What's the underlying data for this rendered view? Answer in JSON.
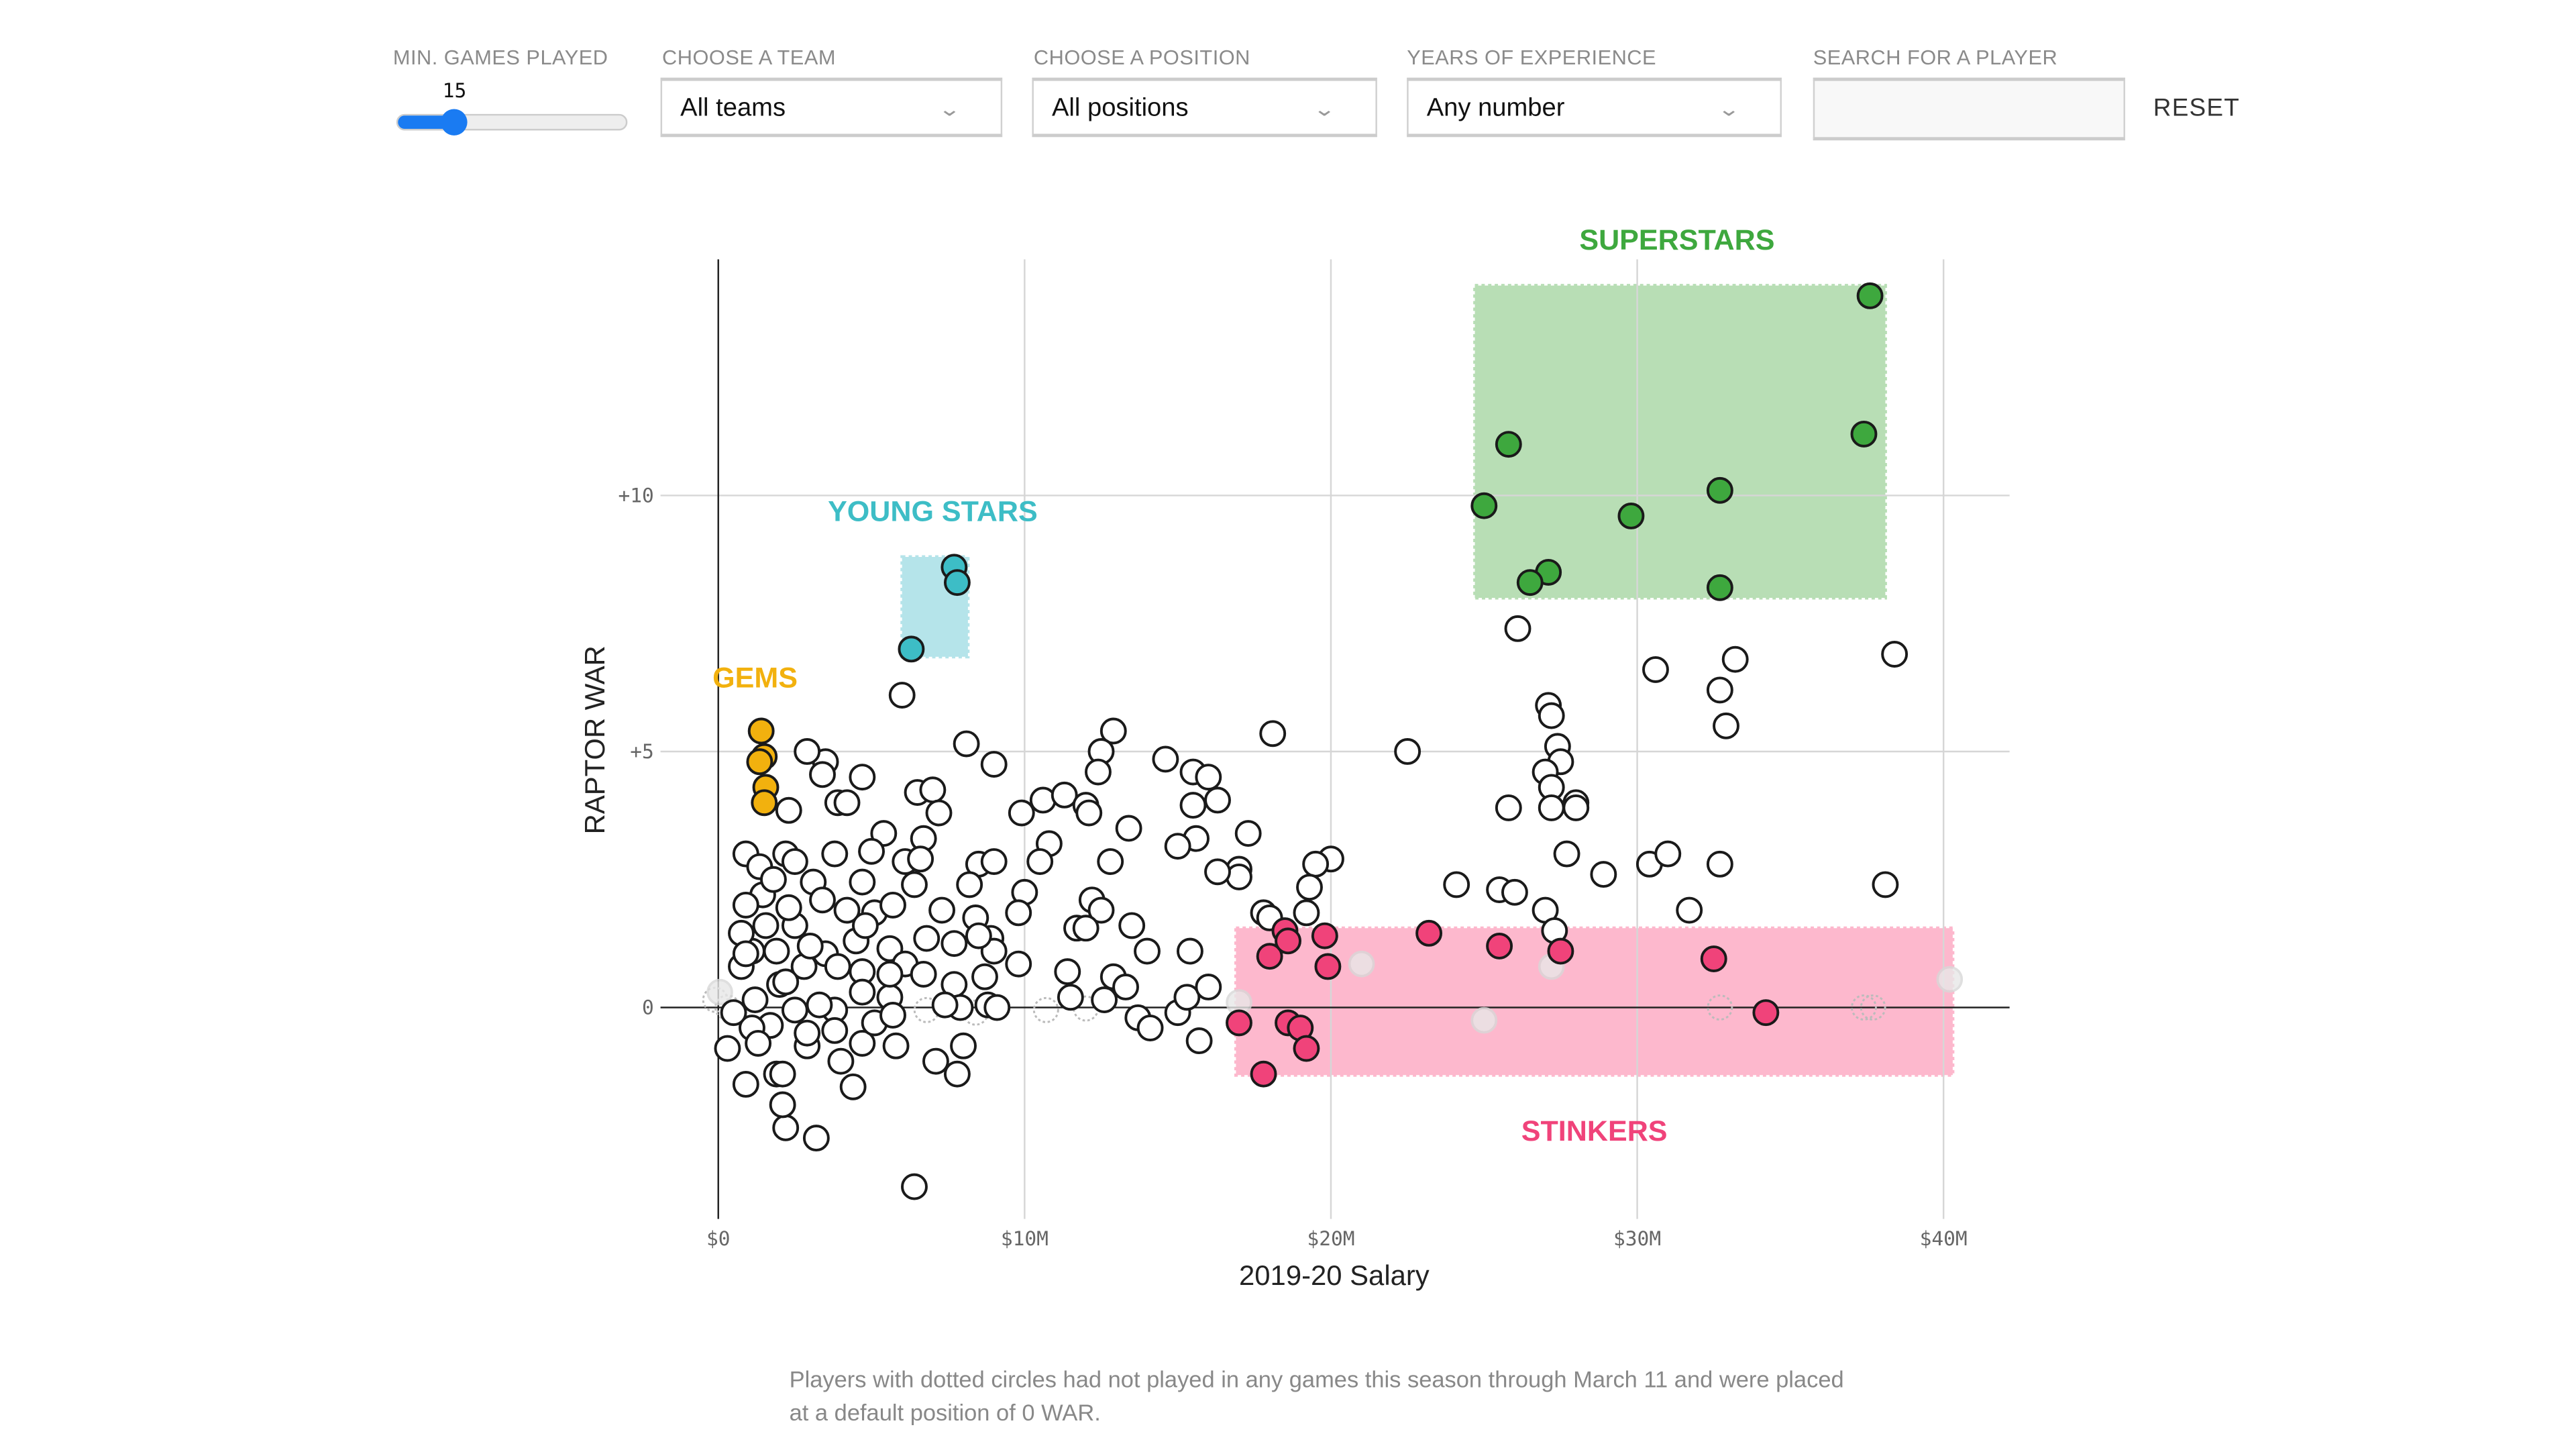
{
  "controls": {
    "min_games": {
      "label": "MIN. GAMES PLAYED",
      "value": "15",
      "fraction": 0.25
    },
    "team": {
      "label": "CHOOSE A TEAM",
      "value": "All teams"
    },
    "position": {
      "label": "CHOOSE A POSITION",
      "value": "All positions"
    },
    "experience": {
      "label": "YEARS OF EXPERIENCE",
      "value": "Any number"
    },
    "search": {
      "label": "SEARCH FOR A PLAYER",
      "value": "",
      "placeholder": ""
    },
    "reset_label": "RESET"
  },
  "colors": {
    "gems": "#f2b10e",
    "young_stars": "#3dbdc6",
    "superstars": "#3ea83e",
    "stinkers": "#f0437a",
    "gems_bg": "#fbe3a6",
    "young_bg": "#b5e4ea",
    "super_bg": "#b8deb5",
    "stinkers_bg": "#fdb8cd"
  },
  "chart_data": {
    "type": "scatter",
    "xlabel": "2019-20 Salary",
    "ylabel": "RAPTOR WAR",
    "xlim": [
      0,
      42
    ],
    "ylim": [
      -4.1,
      14.8
    ],
    "x_ticks": [
      {
        "v": 0,
        "label": "$0"
      },
      {
        "v": 10,
        "label": "$10M"
      },
      {
        "v": 20,
        "label": "$20M"
      },
      {
        "v": 30,
        "label": "$30M"
      },
      {
        "v": 40,
        "label": "$40M"
      }
    ],
    "y_ticks": [
      {
        "v": 10,
        "label": "+10"
      },
      {
        "v": 5,
        "label": "+5"
      },
      {
        "v": 0,
        "label": "0"
      }
    ],
    "grid": true,
    "groups": [
      {
        "key": "superstars",
        "label": "SUPERSTARS",
        "region": {
          "x": [
            24.7,
            38.1
          ],
          "y": [
            8.0,
            14.1
          ]
        },
        "label_at": [
          31.3,
          14.8
        ],
        "points": [
          [
            37.6,
            13.9
          ],
          [
            37.4,
            11.2
          ],
          [
            25.8,
            11.0
          ],
          [
            25.0,
            9.8
          ],
          [
            32.7,
            10.1
          ],
          [
            29.8,
            9.6
          ],
          [
            27.1,
            8.5
          ],
          [
            26.5,
            8.3
          ],
          [
            32.7,
            8.2
          ]
        ]
      },
      {
        "key": "young_stars",
        "label": "YOUNG STARS",
        "region": {
          "x": [
            6.0,
            8.15
          ],
          "y": [
            6.85,
            8.8
          ]
        },
        "label_at": [
          7.0,
          9.5
        ],
        "points": [
          [
            7.7,
            8.6
          ],
          [
            7.8,
            8.3
          ],
          [
            6.3,
            7.0
          ]
        ]
      },
      {
        "key": "gems",
        "label": "GEMS",
        "region": null,
        "label_at": [
          1.2,
          6.25
        ],
        "points": [
          [
            1.4,
            5.4
          ],
          [
            1.5,
            4.9
          ],
          [
            1.35,
            4.8
          ],
          [
            1.55,
            4.3
          ],
          [
            1.5,
            4.0
          ]
        ]
      },
      {
        "key": "stinkers",
        "label": "STINKERS",
        "region": {
          "x": [
            16.9,
            40.3
          ],
          "y": [
            -1.32,
            1.55
          ]
        },
        "label_at": [
          28.6,
          -2.6
        ],
        "points": [
          [
            17.0,
            -0.3
          ],
          [
            17.8,
            -1.3
          ],
          [
            18.0,
            1.0
          ],
          [
            18.5,
            1.5
          ],
          [
            18.6,
            1.3
          ],
          [
            18.6,
            -0.3
          ],
          [
            19.0,
            -0.4
          ],
          [
            19.2,
            -0.8
          ],
          [
            19.8,
            1.4
          ],
          [
            19.9,
            0.8
          ],
          [
            23.2,
            1.45
          ],
          [
            25.5,
            1.2
          ],
          [
            27.5,
            1.1
          ],
          [
            32.5,
            0.95
          ],
          [
            34.2,
            -0.1
          ]
        ]
      }
    ],
    "other_points": [
      [
        26.1,
        7.4
      ],
      [
        30.6,
        6.6
      ],
      [
        33.2,
        6.8
      ],
      [
        38.4,
        6.9
      ],
      [
        32.7,
        6.2
      ],
      [
        32.9,
        5.5
      ],
      [
        27.1,
        5.9
      ],
      [
        27.2,
        5.7
      ],
      [
        27.4,
        5.1
      ],
      [
        27.5,
        4.8
      ],
      [
        27.0,
        4.6
      ],
      [
        27.2,
        4.3
      ],
      [
        27.2,
        3.9
      ],
      [
        28.0,
        4.0
      ],
      [
        28.0,
        3.9
      ],
      [
        25.8,
        3.9
      ],
      [
        22.5,
        5.0
      ],
      [
        18.1,
        5.35
      ],
      [
        27.7,
        3.0
      ],
      [
        28.9,
        2.6
      ],
      [
        30.4,
        2.8
      ],
      [
        31.0,
        3.0
      ],
      [
        32.7,
        2.8
      ],
      [
        24.1,
        2.4
      ],
      [
        25.5,
        2.3
      ],
      [
        26.0,
        2.25
      ],
      [
        27.0,
        1.9
      ],
      [
        31.7,
        1.9
      ],
      [
        38.1,
        2.4
      ],
      [
        27.3,
        1.5
      ],
      [
        17.3,
        3.4
      ],
      [
        20.0,
        2.9
      ],
      [
        19.5,
        2.8
      ],
      [
        19.3,
        2.35
      ],
      [
        19.2,
        1.85
      ],
      [
        17.8,
        1.85
      ],
      [
        18.0,
        1.75
      ],
      [
        17.0,
        2.7
      ],
      [
        17.0,
        2.55
      ],
      [
        16.3,
        2.65
      ],
      [
        8.1,
        5.15
      ],
      [
        9.0,
        4.75
      ],
      [
        6.0,
        6.1
      ],
      [
        12.9,
        5.4
      ],
      [
        12.5,
        5.0
      ],
      [
        12.4,
        4.6
      ],
      [
        14.6,
        4.85
      ],
      [
        15.5,
        4.6
      ],
      [
        16.0,
        4.5
      ],
      [
        16.3,
        4.05
      ],
      [
        15.5,
        3.95
      ],
      [
        10.6,
        4.05
      ],
      [
        9.9,
        3.8
      ],
      [
        11.3,
        4.15
      ],
      [
        12.0,
        3.95
      ],
      [
        12.1,
        3.8
      ],
      [
        13.4,
        3.5
      ],
      [
        10.8,
        3.2
      ],
      [
        12.8,
        2.85
      ],
      [
        15.6,
        3.3
      ],
      [
        15.0,
        3.15
      ],
      [
        12.2,
        2.1
      ],
      [
        12.5,
        1.9
      ],
      [
        13.5,
        1.6
      ],
      [
        14.0,
        1.1
      ],
      [
        15.4,
        1.1
      ],
      [
        11.7,
        1.55
      ],
      [
        12.0,
        1.55
      ],
      [
        11.4,
        0.7
      ],
      [
        11.5,
        0.2
      ],
      [
        12.6,
        0.15
      ],
      [
        12.9,
        0.6
      ],
      [
        13.3,
        0.4
      ],
      [
        13.7,
        -0.2
      ],
      [
        14.1,
        -0.4
      ],
      [
        15.0,
        -0.1
      ],
      [
        15.3,
        0.2
      ],
      [
        15.7,
        -0.65
      ],
      [
        16.0,
        0.4
      ],
      [
        10.5,
        2.85
      ],
      [
        10.0,
        2.25
      ],
      [
        9.8,
        1.85
      ],
      [
        9.8,
        0.85
      ],
      [
        8.8,
        0.05
      ],
      [
        9.1,
        0.0
      ],
      [
        8.5,
        2.8
      ],
      [
        9.0,
        2.85
      ],
      [
        8.9,
        1.35
      ],
      [
        9.0,
        1.1
      ],
      [
        6.4,
        -3.5
      ],
      [
        3.2,
        -2.55
      ],
      [
        2.2,
        -2.35
      ],
      [
        2.1,
        -1.9
      ],
      [
        7.8,
        -1.3
      ],
      [
        7.1,
        -1.05
      ],
      [
        8.0,
        -0.75
      ],
      [
        5.8,
        -0.75
      ],
      [
        4.4,
        -1.55
      ],
      [
        0.9,
        -1.5
      ],
      [
        1.9,
        -1.3
      ],
      [
        2.9,
        -0.75
      ],
      [
        0.3,
        -0.8
      ],
      [
        6.5,
        4.2
      ],
      [
        7.0,
        4.25
      ],
      [
        7.2,
        3.8
      ],
      [
        4.7,
        4.5
      ],
      [
        3.5,
        4.8
      ],
      [
        2.9,
        5.0
      ],
      [
        3.4,
        4.55
      ],
      [
        3.9,
        4.0
      ],
      [
        4.2,
        4.0
      ],
      [
        2.3,
        3.85
      ],
      [
        0.9,
        3.0
      ],
      [
        6.7,
        3.3
      ],
      [
        6.1,
        2.85
      ],
      [
        5.4,
        3.4
      ],
      [
        6.6,
        2.9
      ],
      [
        5.0,
        3.05
      ],
      [
        3.8,
        3.0
      ],
      [
        2.2,
        3.0
      ],
      [
        2.5,
        2.85
      ],
      [
        3.1,
        2.45
      ],
      [
        4.7,
        2.45
      ],
      [
        3.4,
        2.1
      ],
      [
        5.1,
        1.85
      ],
      [
        6.4,
        2.4
      ],
      [
        8.2,
        2.4
      ],
      [
        7.3,
        1.9
      ],
      [
        8.4,
        1.75
      ],
      [
        8.5,
        1.4
      ],
      [
        7.7,
        1.25
      ],
      [
        6.8,
        1.35
      ],
      [
        5.6,
        1.15
      ],
      [
        4.5,
        1.3
      ],
      [
        3.5,
        1.05
      ],
      [
        2.5,
        1.6
      ],
      [
        1.55,
        1.6
      ],
      [
        1.45,
        2.2
      ],
      [
        0.9,
        2.0
      ],
      [
        1.9,
        1.1
      ],
      [
        2.8,
        0.8
      ],
      [
        3.9,
        0.8
      ],
      [
        4.7,
        0.7
      ],
      [
        6.1,
        0.85
      ],
      [
        7.7,
        0.45
      ],
      [
        8.7,
        0.6
      ],
      [
        7.9,
        0.0
      ],
      [
        5.6,
        0.2
      ],
      [
        4.7,
        0.3
      ],
      [
        3.8,
        -0.05
      ],
      [
        3.3,
        0.05
      ],
      [
        2.5,
        -0.05
      ],
      [
        1.7,
        -0.35
      ],
      [
        1.1,
        -0.4
      ],
      [
        0.5,
        -0.1
      ],
      [
        1.2,
        0.15
      ],
      [
        2.0,
        0.45
      ],
      [
        2.9,
        -0.5
      ],
      [
        3.8,
        -0.45
      ],
      [
        4.7,
        -0.7
      ],
      [
        5.1,
        -0.3
      ],
      [
        5.7,
        -0.15
      ],
      [
        1.3,
        -0.7
      ],
      [
        0.75,
        0.8
      ],
      [
        1.1,
        1.1
      ],
      [
        0.75,
        1.45
      ],
      [
        1.35,
        2.75
      ],
      [
        1.8,
        2.5
      ],
      [
        2.3,
        1.95
      ],
      [
        4.2,
        1.9
      ],
      [
        4.8,
        1.6
      ],
      [
        5.7,
        2.0
      ],
      [
        5.6,
        0.65
      ],
      [
        6.7,
        0.65
      ],
      [
        7.4,
        0.05
      ],
      [
        4.0,
        -1.05
      ],
      [
        2.1,
        -1.3
      ],
      [
        2.2,
        0.5
      ],
      [
        3.0,
        1.2
      ],
      [
        0.9,
        1.05
      ]
    ],
    "faded_points": [
      [
        0.05,
        0.3
      ],
      [
        21.0,
        0.85
      ],
      [
        25.0,
        -0.25
      ],
      [
        27.2,
        0.8
      ],
      [
        40.2,
        0.55
      ],
      [
        17.0,
        0.1
      ]
    ],
    "zero_games_points": [
      [
        -0.1,
        0.15
      ],
      [
        0.3,
        0.0
      ],
      [
        6.8,
        -0.05
      ],
      [
        8.4,
        -0.1
      ],
      [
        10.7,
        -0.05
      ],
      [
        12.0,
        -0.02
      ],
      [
        32.7,
        0.0
      ],
      [
        37.4,
        0.0
      ],
      [
        37.7,
        0.0
      ]
    ],
    "note": "Players with dotted circles had not played in any games this season through March 11 and were placed at a default position of 0 WAR."
  }
}
